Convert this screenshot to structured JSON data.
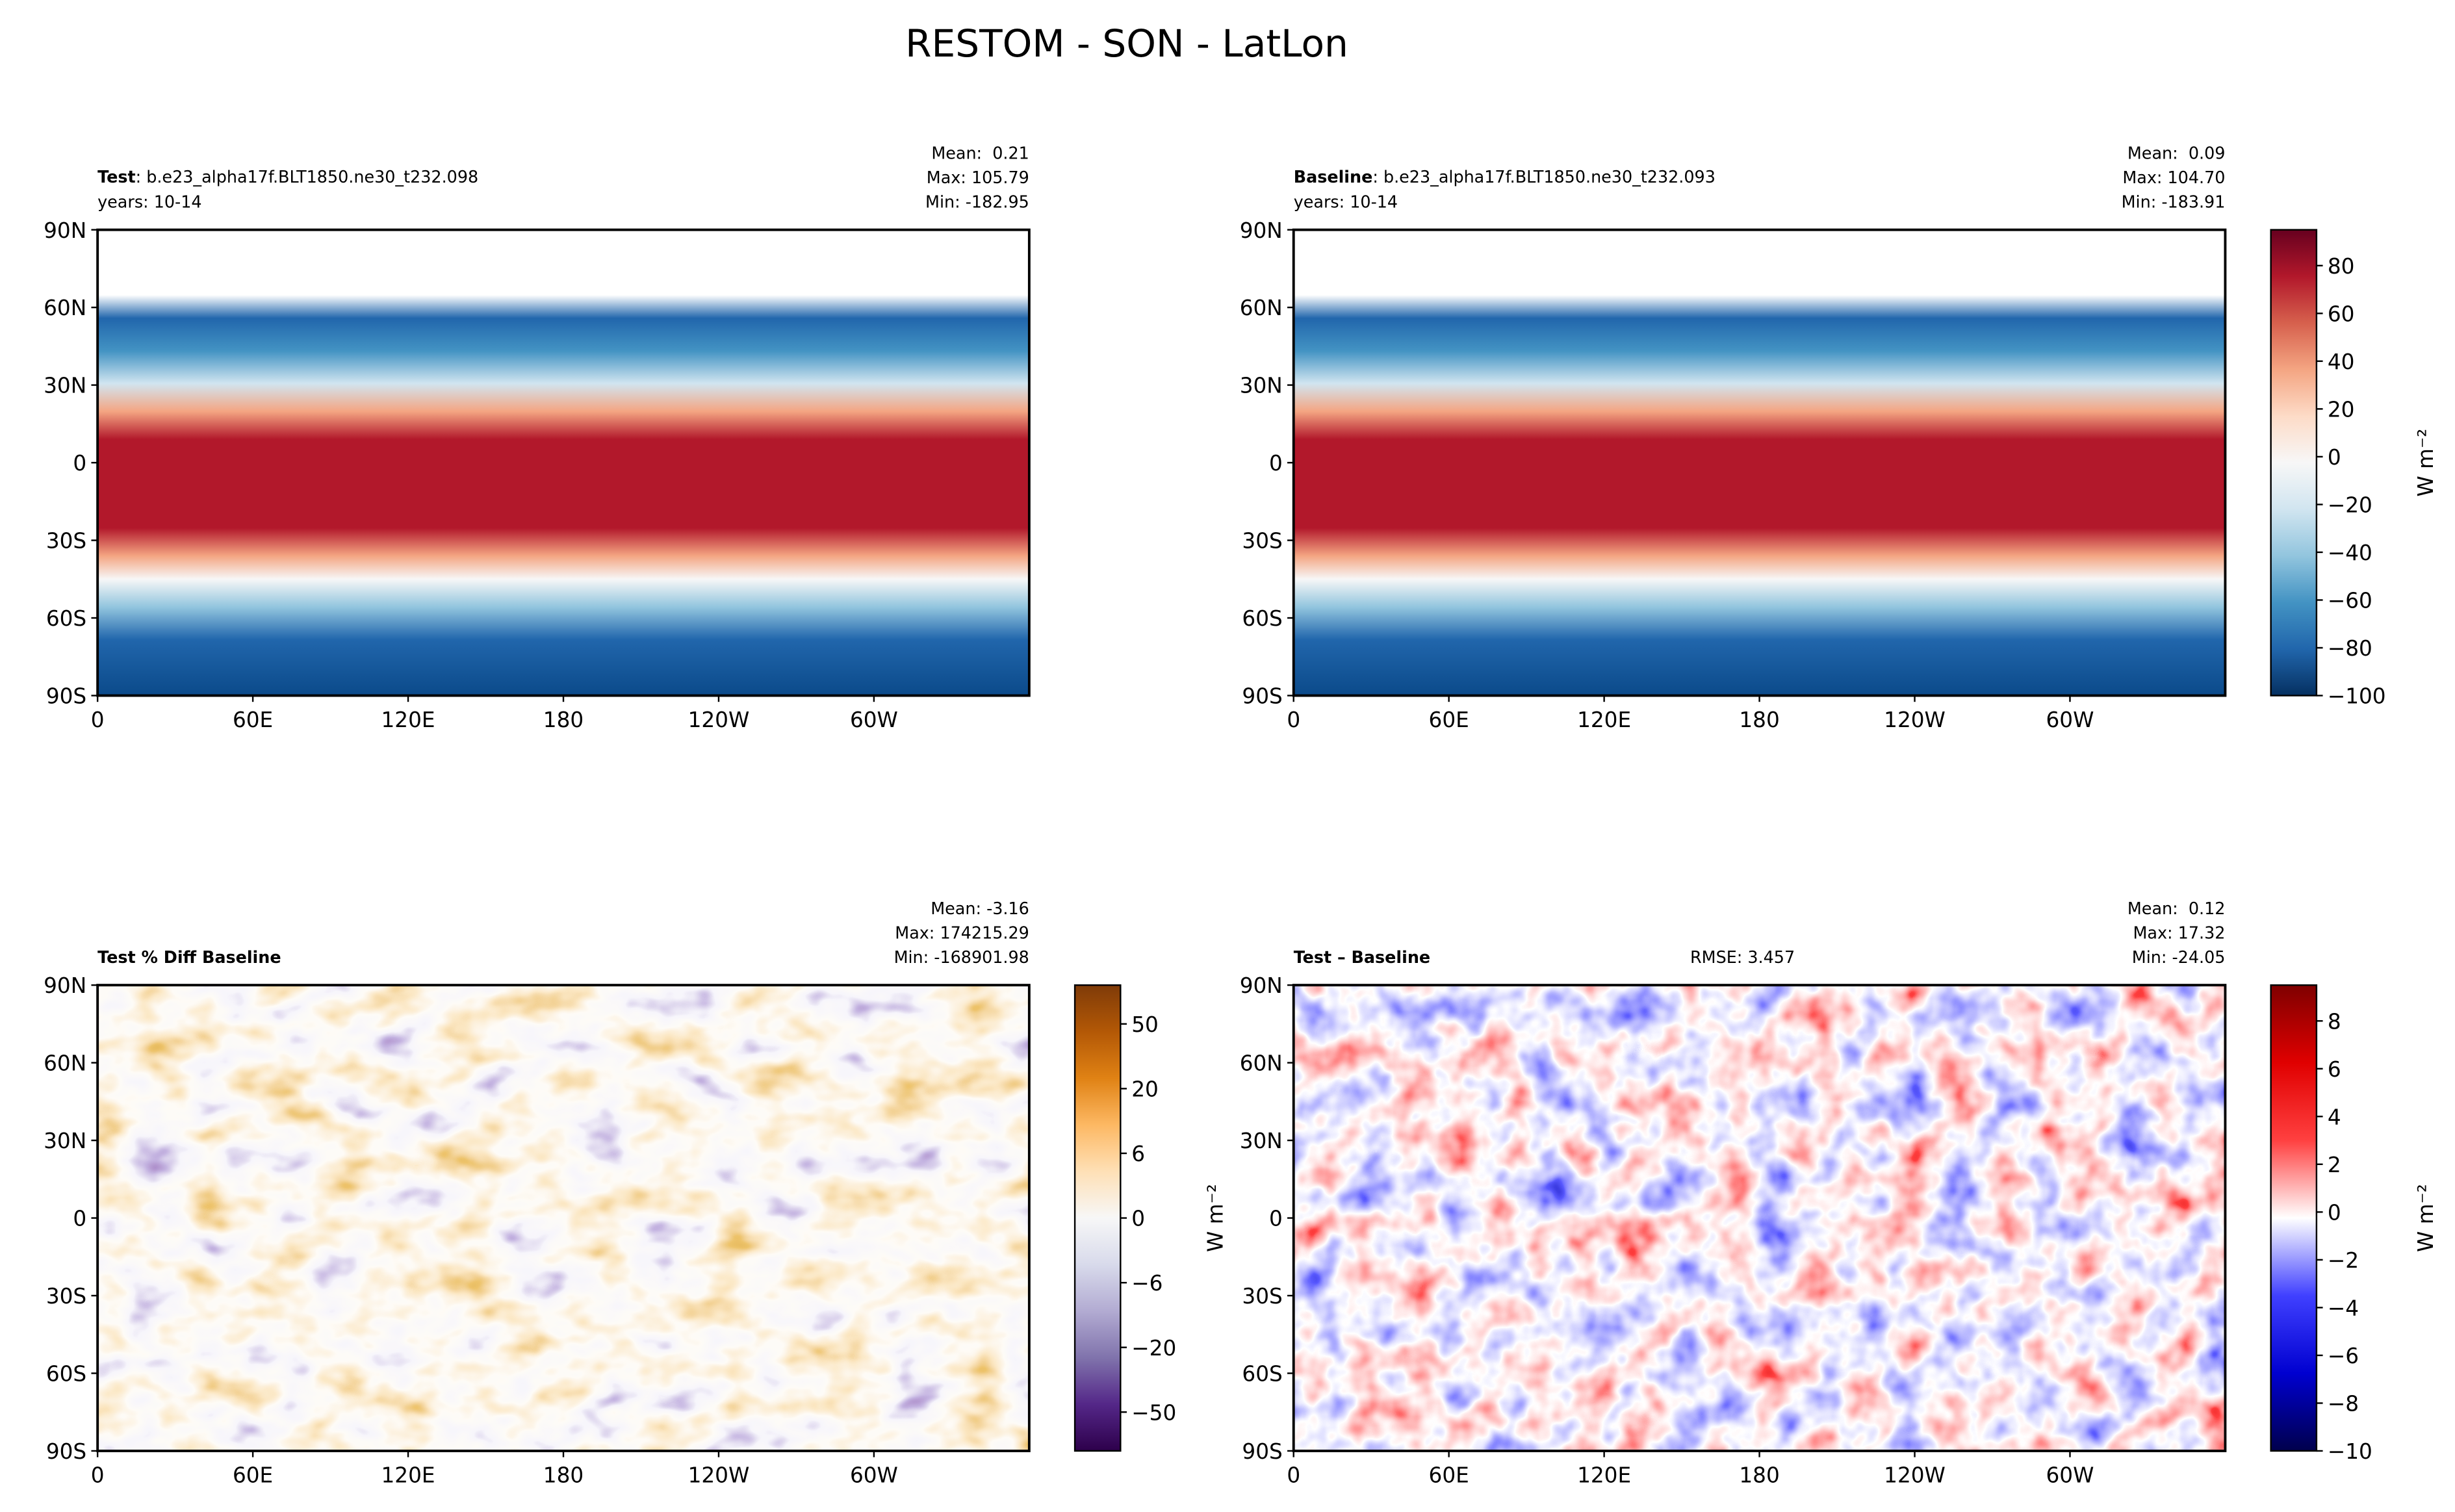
{
  "title": "RESTOM - SON - LatLon",
  "lonlim": [
    0,
    360
  ],
  "latlim": [
    -90,
    90
  ],
  "lonticks": [
    0,
    {
      "value": 60,
      "label": "60E"
    },
    {
      "value": 120,
      "label": "120E"
    },
    180,
    {
      "value": 240,
      "label": "120W"
    },
    {
      "value": 300,
      "label": "60W"
    }
  ],
  "latticks": [
    {
      "value": 90,
      "label": "90N"
    },
    {
      "value": 60,
      "label": "60N"
    },
    {
      "value": 30,
      "label": "30N"
    },
    0,
    {
      "value": -30,
      "label": "30S"
    },
    {
      "value": -60,
      "label": "60S"
    },
    {
      "value": -90,
      "label": "90S"
    }
  ],
  "panels": [
    {
      "title": "Test",
      "case": ": b.e23_alpha17f.BLT1850.ne30_t232.098",
      "years": "years: 10-14",
      "stats": [
        "Mean:  0.21",
        "Max: 105.79",
        "Min: -182.95"
      ]
    },
    {
      "title": "Baseline",
      "case": ": b.e23_alpha17f.BLT1850.ne30_t232.093",
      "years": "years: 10-14",
      "stats": [
        "Mean:  0.09",
        "Max: 104.70",
        "Min: -183.91"
      ],
      "colorbar": {
        "scale": "linear",
        "clim": [
          -100,
          95
        ],
        "label": "W m⁻²",
        "cmap": [
          "#053061",
          "#2166ac",
          "#4393c3",
          "#92c5de",
          "#d1e5f0",
          "#f7f7f7",
          "#fddbc7",
          "#f4a582",
          "#d6604d",
          "#b2182b",
          "#67001f"
        ],
        "ticks": [
          {
            "value": -100,
            "label": "−100"
          },
          {
            "value": -80,
            "label": "−80"
          },
          {
            "value": -60,
            "label": "−60"
          },
          {
            "value": -40,
            "label": "−40"
          },
          {
            "value": -20,
            "label": "−20"
          },
          0,
          20,
          40,
          60,
          80
        ]
      }
    },
    {
      "title": "Test % Diff Baseline",
      "stats": [
        "Mean: -3.16",
        "Max: 174215.29",
        "Min: -168901.98"
      ],
      "colorbar": {
        "scale": "discrete",
        "label": "W m⁻²",
        "cmap": [
          "#2d004b",
          "#542788",
          "#8073ac",
          "#b2abd2",
          "#d8daeb",
          "#f7f7f7",
          "#fee0b6",
          "#fdb863",
          "#e08214",
          "#b35806",
          "#7f3b08"
        ],
        "ticks": [
          {
            "value": -50,
            "label": "−50"
          },
          {
            "value": -20,
            "label": "−20"
          },
          {
            "value": -6,
            "label": "−6"
          },
          0,
          6,
          20,
          50
        ]
      }
    },
    {
      "title": "Test – Baseline",
      "rmse": "RMSE: 3.457",
      "stats": [
        "Mean:  0.12",
        "Max: 17.32",
        "Min: -24.05"
      ],
      "colorbar": {
        "scale": "linear",
        "clim": [
          -10,
          9.5
        ],
        "label": "W m⁻²",
        "cmap": [
          "#00004c",
          "#0000d0",
          "#4040ff",
          "#ffffff",
          "#ff4040",
          "#e00000",
          "#7f0000"
        ],
        "ticks": [
          {
            "value": -10,
            "label": "−10"
          },
          {
            "value": -8,
            "label": "−8"
          },
          {
            "value": -6,
            "label": "−6"
          },
          {
            "value": -4,
            "label": "−4"
          },
          {
            "value": -2,
            "label": "−2"
          },
          0,
          2,
          4,
          6,
          8
        ]
      }
    }
  ]
}
